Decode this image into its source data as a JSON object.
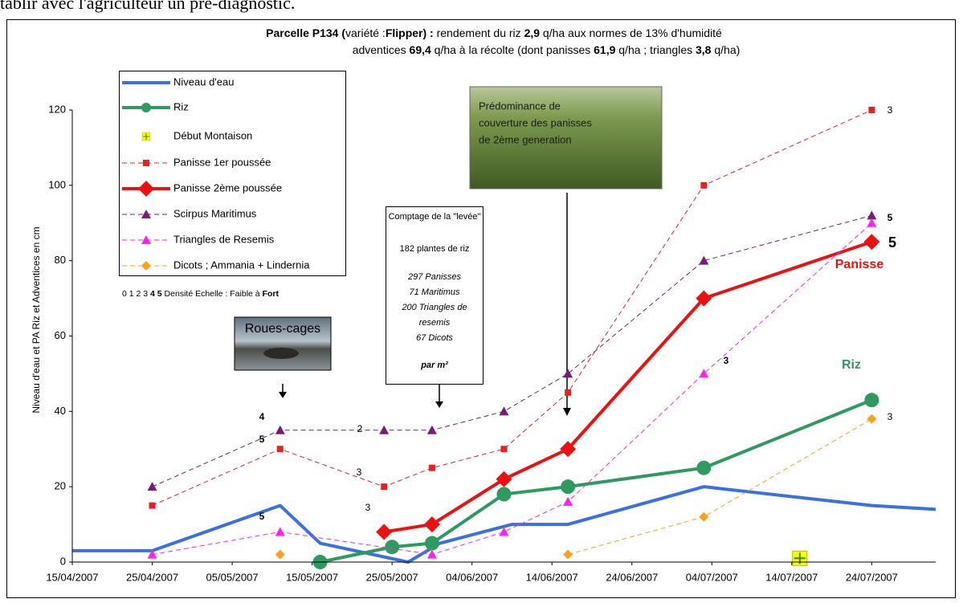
{
  "document_text": "tablir avec l'agriculteur un pré-diagnostic.",
  "chart_data": {
    "type": "line",
    "title": [
      [
        {
          "text": "Parcelle P134 (",
          "bold": true
        },
        {
          "text": "variété :",
          "bold": false
        },
        {
          "text": "Flipper) :",
          "bold": true
        },
        {
          "text": " rendement du riz ",
          "bold": false
        },
        {
          "text": "2,9",
          "bold": true
        },
        {
          "text": " q/ha aux normes de 13% d'humidité",
          "bold": false
        }
      ],
      [
        {
          "text": "adventices ",
          "bold": false
        },
        {
          "text": "69,4",
          "bold": true
        },
        {
          "text": " q/ha à la récolte (dont panisses ",
          "bold": false
        },
        {
          "text": "61,9",
          "bold": true
        },
        {
          "text": " q/ha ; triangles ",
          "bold": false
        },
        {
          "text": "3,8",
          "bold": true
        },
        {
          "text": " q/ha)",
          "bold": false
        }
      ]
    ],
    "y_label": "Niveau d'eau et PA Riz et Adventices en cm",
    "xlim": [
      "15/04/2007",
      "01/08/2007"
    ],
    "xticks": [
      "15/04/2007",
      "25/04/2007",
      "05/05/2007",
      "15/05/2007",
      "25/05/2007",
      "04/06/2007",
      "14/06/2007",
      "24/06/2007",
      "04/07/2007",
      "14/07/2007",
      "24/07/2007"
    ],
    "ylim": [
      0,
      120
    ],
    "yticks": [
      0,
      20,
      40,
      60,
      80,
      100,
      120
    ],
    "series": [
      {
        "name": "Niveau d'eau",
        "color": "#3a6fe6",
        "style": "solid-thick",
        "marker": "none",
        "x": [
          "15/04/2007",
          "25/04/2007",
          "11/05/2007",
          "16/05/2007",
          "27/05/2007",
          "31/05/2007",
          "09/06/2007",
          "16/06/2007",
          "03/07/2007",
          "24/07/2007",
          "01/08/2007"
        ],
        "values": [
          3,
          3,
          15,
          5,
          0,
          5,
          10,
          10,
          20,
          15,
          14
        ]
      },
      {
        "name": "Riz",
        "color": "#2e9a5f",
        "style": "solid-thick",
        "marker": "circle",
        "x": [
          "16/05/2007",
          "25/05/2007",
          "30/05/2007",
          "08/06/2007",
          "16/06/2007",
          "03/07/2007",
          "24/07/2007"
        ],
        "values": [
          0,
          4,
          5,
          18,
          20,
          25,
          43
        ]
      },
      {
        "name": "Début Montaison",
        "color": "#ffff00",
        "style": "none",
        "marker": "cross",
        "x": [
          "15/07/2007"
        ],
        "values": [
          1
        ]
      },
      {
        "name": "Panisse 1er poussée",
        "color": "#e82020",
        "style": "dashed",
        "marker": "square",
        "x": [
          "25/04/2007",
          "11/05/2007",
          "24/05/2007",
          "30/05/2007",
          "08/06/2007",
          "16/06/2007",
          "03/07/2007",
          "24/07/2007"
        ],
        "values": [
          15,
          30,
          20,
          25,
          30,
          45,
          100,
          120
        ]
      },
      {
        "name": "Panisse 2ème poussée",
        "color": "#ee1010",
        "style": "solid-thick",
        "marker": "diamond-big",
        "x": [
          "24/05/2007",
          "30/05/2007",
          "08/06/2007",
          "16/06/2007",
          "03/07/2007",
          "24/07/2007"
        ],
        "values": [
          8,
          10,
          22,
          30,
          70,
          85
        ]
      },
      {
        "name": "Scirpus Maritimus",
        "color": "#7b1a7b",
        "style": "dashed",
        "marker": "triangle",
        "x": [
          "25/04/2007",
          "11/05/2007",
          "24/05/2007",
          "30/05/2007",
          "08/06/2007",
          "16/06/2007",
          "03/07/2007",
          "24/07/2007"
        ],
        "values": [
          20,
          35,
          35,
          35,
          40,
          50,
          80,
          92
        ]
      },
      {
        "name": "Triangles de Resemis",
        "color": "#ff22ee",
        "style": "dashed",
        "marker": "triangle",
        "x": [
          "25/04/2007",
          "11/05/2007",
          "30/05/2007",
          "08/06/2007",
          "16/06/2007",
          "03/07/2007",
          "24/07/2007"
        ],
        "values": [
          2,
          8,
          2,
          8,
          16,
          50,
          90
        ]
      },
      {
        "name": "Dicots ; Ammania + Lindernia",
        "color": "#ffa020",
        "style": "dashed",
        "marker": "diamond",
        "x": [
          "11/05/2007",
          null,
          "16/06/2007",
          "03/07/2007",
          "24/07/2007"
        ],
        "values": [
          2,
          null,
          2,
          12,
          38
        ]
      }
    ],
    "density_scale": [
      {
        "text": "0 1 2 3 ",
        "bold": false
      },
      {
        "text": "4 5",
        "bold": true
      },
      {
        "text": "  Densité Echelle : Faible à ",
        "bold": false
      },
      {
        "text": "Fort",
        "bold": true
      }
    ],
    "annotations": [
      "4",
      "5",
      "2",
      "3",
      "3",
      "5",
      "3",
      "3",
      "5",
      "5",
      "Panisse",
      "Riz",
      "3"
    ],
    "photo_label": "Roues-cages",
    "photo_caption": [
      "Prédominance de",
      "couverture des panisses",
      "de 2ème generation"
    ],
    "count_box": [
      "Comptage de la \"levée\"",
      "182 plantes de riz",
      "297 Panisses",
      "71 Maritimus",
      "200 Triangles de",
      "resemis",
      "67 Dicots",
      "par m²"
    ]
  }
}
